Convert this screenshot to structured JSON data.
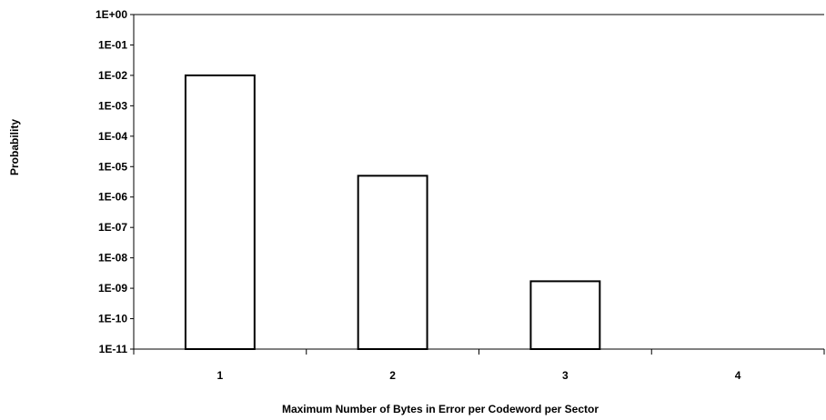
{
  "chart_data": {
    "type": "bar",
    "scale_y": "log",
    "title": "",
    "xlabel": "Maximum  Number of Bytes in Error per Codeword per Sector",
    "ylabel": "Probability",
    "categories": [
      "1",
      "2",
      "3",
      "4"
    ],
    "values": [
      0.01,
      5e-06,
      1.7e-09,
      null
    ],
    "ylim": [
      1e-11,
      1
    ],
    "y_tick_labels": [
      "1E+00",
      "1E-01",
      "1E-02",
      "1E-03",
      "1E-04",
      "1E-05",
      "1E-06",
      "1E-07",
      "1E-08",
      "1E-09",
      "1E-10",
      "1E-11"
    ],
    "grid": false,
    "legend": "none",
    "colors": {
      "bar_fill": "#ffffff",
      "bar_stroke": "#000000",
      "top_frame": "#808080"
    }
  }
}
